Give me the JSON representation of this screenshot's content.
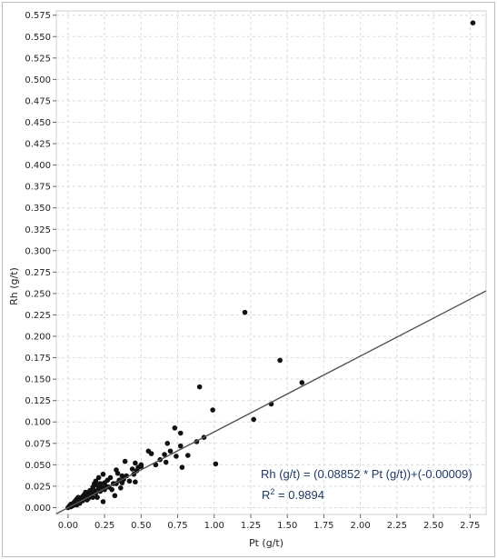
{
  "chart_data": {
    "type": "scatter",
    "title": "",
    "xlabel": "Pt (g/t)",
    "ylabel": "Rh (g/t)",
    "xlim": [
      -0.08,
      2.86
    ],
    "ylim": [
      -0.008,
      0.58
    ],
    "grid": true,
    "x_ticks": [
      "0.00",
      "0.25",
      "0.50",
      "0.75",
      "1.00",
      "1.25",
      "1.50",
      "1.75",
      "2.00",
      "2.25",
      "2.50",
      "2.75"
    ],
    "y_ticks": [
      "0.000",
      "0.025",
      "0.050",
      "0.075",
      "0.100",
      "0.125",
      "0.150",
      "0.175",
      "0.200",
      "0.225",
      "0.250",
      "0.275",
      "0.300",
      "0.325",
      "0.350",
      "0.375",
      "0.400",
      "0.425",
      "0.450",
      "0.475",
      "0.500",
      "0.525",
      "0.550",
      "0.575"
    ],
    "regression": {
      "slope": 0.08852,
      "intercept": -9e-05
    },
    "annotations": {
      "equation": "Rh (g/t) = (0.08852 * Pt (g/t))+(-0.00009)",
      "r2_prefix": "R",
      "r2_sup": "2",
      "r2_suffix": " = 0.9894"
    },
    "points": [
      [
        0.0,
        0.0
      ],
      [
        0.01,
        0.002
      ],
      [
        0.02,
        0.001
      ],
      [
        0.02,
        0.004
      ],
      [
        0.03,
        0.002
      ],
      [
        0.04,
        0.003
      ],
      [
        0.04,
        0.006
      ],
      [
        0.05,
        0.004
      ],
      [
        0.05,
        0.008
      ],
      [
        0.06,
        0.003
      ],
      [
        0.06,
        0.01
      ],
      [
        0.07,
        0.006
      ],
      [
        0.07,
        0.012
      ],
      [
        0.08,
        0.008
      ],
      [
        0.08,
        0.005
      ],
      [
        0.09,
        0.01
      ],
      [
        0.1,
        0.013
      ],
      [
        0.1,
        0.008
      ],
      [
        0.11,
        0.015
      ],
      [
        0.11,
        0.01
      ],
      [
        0.12,
        0.012
      ],
      [
        0.12,
        0.018
      ],
      [
        0.13,
        0.009
      ],
      [
        0.13,
        0.014
      ],
      [
        0.14,
        0.011
      ],
      [
        0.14,
        0.016
      ],
      [
        0.15,
        0.013
      ],
      [
        0.15,
        0.02
      ],
      [
        0.16,
        0.017
      ],
      [
        0.17,
        0.012
      ],
      [
        0.17,
        0.024
      ],
      [
        0.18,
        0.02
      ],
      [
        0.18,
        0.028
      ],
      [
        0.19,
        0.017
      ],
      [
        0.19,
        0.031
      ],
      [
        0.2,
        0.026
      ],
      [
        0.2,
        0.012
      ],
      [
        0.21,
        0.022
      ],
      [
        0.21,
        0.035
      ],
      [
        0.22,
        0.019
      ],
      [
        0.22,
        0.028
      ],
      [
        0.23,
        0.024
      ],
      [
        0.24,
        0.007
      ],
      [
        0.24,
        0.039
      ],
      [
        0.25,
        0.021
      ],
      [
        0.25,
        0.029
      ],
      [
        0.26,
        0.025
      ],
      [
        0.27,
        0.032
      ],
      [
        0.28,
        0.024
      ],
      [
        0.29,
        0.035
      ],
      [
        0.3,
        0.021
      ],
      [
        0.31,
        0.028
      ],
      [
        0.32,
        0.014
      ],
      [
        0.33,
        0.044
      ],
      [
        0.33,
        0.028
      ],
      [
        0.34,
        0.04
      ],
      [
        0.35,
        0.032
      ],
      [
        0.36,
        0.023
      ],
      [
        0.37,
        0.029
      ],
      [
        0.37,
        0.037
      ],
      [
        0.38,
        0.033
      ],
      [
        0.39,
        0.054
      ],
      [
        0.4,
        0.037
      ],
      [
        0.42,
        0.031
      ],
      [
        0.44,
        0.045
      ],
      [
        0.45,
        0.039
      ],
      [
        0.46,
        0.052
      ],
      [
        0.46,
        0.03
      ],
      [
        0.47,
        0.043
      ],
      [
        0.48,
        0.047
      ],
      [
        0.5,
        0.048
      ],
      [
        0.5,
        0.05
      ],
      [
        0.55,
        0.066
      ],
      [
        0.57,
        0.063
      ],
      [
        0.6,
        0.05
      ],
      [
        0.63,
        0.056
      ],
      [
        0.66,
        0.062
      ],
      [
        0.67,
        0.053
      ],
      [
        0.68,
        0.075
      ],
      [
        0.7,
        0.066
      ],
      [
        0.73,
        0.093
      ],
      [
        0.74,
        0.06
      ],
      [
        0.77,
        0.072
      ],
      [
        0.77,
        0.087
      ],
      [
        0.78,
        0.047
      ],
      [
        0.82,
        0.061
      ],
      [
        0.88,
        0.077
      ],
      [
        0.9,
        0.141
      ],
      [
        0.93,
        0.082
      ],
      [
        0.99,
        0.114
      ],
      [
        1.01,
        0.051
      ],
      [
        1.21,
        0.228
      ],
      [
        1.27,
        0.103
      ],
      [
        1.39,
        0.121
      ],
      [
        1.45,
        0.172
      ],
      [
        1.6,
        0.146
      ],
      [
        2.77,
        0.566
      ]
    ]
  }
}
